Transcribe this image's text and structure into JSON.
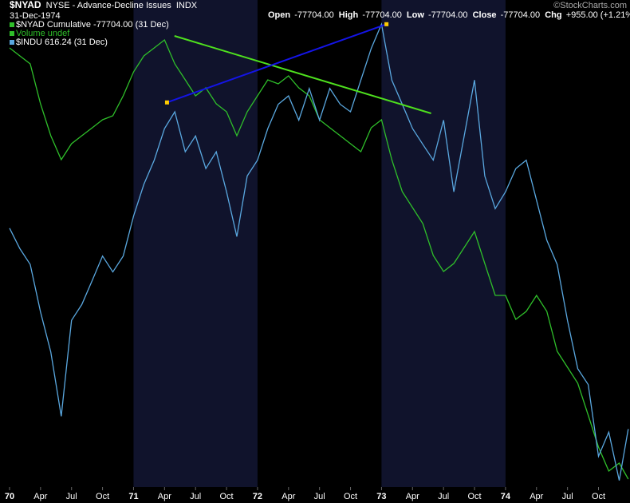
{
  "chart_data": {
    "type": "line",
    "title": "$NYAD",
    "subtitle": "NYSE - Advance-Decline Issues",
    "exchange": "INDX",
    "date": "31-Dec-1974",
    "quote": [
      {
        "label": "Open",
        "value": "-77704.00"
      },
      {
        "label": "High",
        "value": "-77704.00"
      },
      {
        "label": "Low",
        "value": "-77704.00"
      },
      {
        "label": "Close",
        "value": "-77704.00"
      },
      {
        "label": "Chg",
        "value": "+955.00 (+1.21%)"
      }
    ],
    "credit": "©StockCharts.com",
    "legend_extra": "Volume undef",
    "x": [
      1970,
      1970.083,
      1970.167,
      1970.25,
      1970.333,
      1970.417,
      1970.5,
      1970.583,
      1970.667,
      1970.75,
      1970.833,
      1970.917,
      1971,
      1971.083,
      1971.167,
      1971.25,
      1971.333,
      1971.417,
      1971.5,
      1971.583,
      1971.667,
      1971.75,
      1971.833,
      1971.917,
      1972,
      1972.083,
      1972.167,
      1972.25,
      1972.333,
      1972.417,
      1972.5,
      1972.583,
      1972.667,
      1972.75,
      1972.833,
      1972.917,
      1973,
      1973.083,
      1973.167,
      1973.25,
      1973.333,
      1973.417,
      1973.5,
      1973.583,
      1973.667,
      1973.75,
      1973.833,
      1973.917,
      1974,
      1974.083,
      1974.167,
      1974.25,
      1974.333,
      1974.417,
      1974.5,
      1974.583,
      1974.667,
      1974.75,
      1974.833,
      1974.917,
      1974.99
    ],
    "xlim": [
      1969.923,
      1975.004
    ],
    "xticks": [
      {
        "value": 1970,
        "label": "70"
      },
      {
        "value": 1970.25,
        "label": "Apr"
      },
      {
        "value": 1970.5,
        "label": "Jul"
      },
      {
        "value": 1970.75,
        "label": "Oct"
      },
      {
        "value": 1971,
        "label": "71"
      },
      {
        "value": 1971.25,
        "label": "Apr"
      },
      {
        "value": 1971.5,
        "label": "Jul"
      },
      {
        "value": 1971.75,
        "label": "Oct"
      },
      {
        "value": 1972,
        "label": "72"
      },
      {
        "value": 1972.25,
        "label": "Apr"
      },
      {
        "value": 1972.5,
        "label": "Jul"
      },
      {
        "value": 1972.75,
        "label": "Oct"
      },
      {
        "value": 1973,
        "label": "73"
      },
      {
        "value": 1973.25,
        "label": "Apr"
      },
      {
        "value": 1973.5,
        "label": "Jul"
      },
      {
        "value": 1973.75,
        "label": "Oct"
      },
      {
        "value": 1974,
        "label": "74"
      },
      {
        "value": 1974.25,
        "label": "Apr"
      },
      {
        "value": 1974.5,
        "label": "Jul"
      },
      {
        "value": 1974.75,
        "label": "Oct"
      }
    ],
    "ylim": [
      -79204,
      12296
    ],
    "y2lim": [
      554,
      1077
    ],
    "series": [
      {
        "name": "$NYAD Cumulative -77704.00 (31 Dec)",
        "color": "#2fbf2a",
        "values": [
          3296,
          1796,
          296,
          -7204,
          -13204,
          -17704,
          -14704,
          -13204,
          -11704,
          -10204,
          -9454,
          -5704,
          -1204,
          1796,
          3296,
          4796,
          296,
          -2704,
          -5704,
          -4204,
          -7204,
          -8704,
          -13204,
          -8704,
          -5704,
          -2704,
          -3454,
          -1954,
          -4204,
          -5704,
          -10204,
          -11704,
          -13204,
          -14704,
          -16204,
          -11704,
          -10204,
          -17704,
          -23704,
          -26704,
          -29704,
          -35704,
          -38704,
          -37204,
          -34204,
          -31204,
          -37204,
          -43204,
          -43204,
          -47704,
          -46204,
          -43204,
          -46204,
          -53704,
          -56704,
          -59704,
          -65704,
          -71704,
          -76204,
          -74704,
          -77704
        ]
      },
      {
        "name": "$INDU 616.24 (31 Dec)",
        "color": "#5aa8e0",
        "axis": "y2",
        "values": [
          832,
          810,
          793,
          742,
          699,
          630,
          733,
          750,
          776,
          802,
          785,
          802,
          845,
          879,
          905,
          939,
          957,
          914,
          931,
          896,
          914,
          871,
          823,
          888,
          905,
          939,
          965,
          974,
          948,
          982,
          948,
          982,
          965,
          957,
          991,
          1025,
          1051,
          991,
          965,
          939,
          922,
          905,
          948,
          871,
          931,
          991,
          888,
          853,
          871,
          896,
          905,
          862,
          819,
          793,
          733,
          681,
          664,
          587,
          613,
          561,
          616.24
        ]
      }
    ],
    "trendlines": [
      {
        "color": "#4ee01e",
        "x": [
          1971.33,
          1973.4
        ],
        "values": [
          5546,
          -9004
        ]
      },
      {
        "color": "#1414e6",
        "x": [
          1971.27,
          1973.04
        ],
        "values": [
          967,
          1051
        ],
        "axis": "y2",
        "marker": "#ffcc00"
      }
    ]
  }
}
